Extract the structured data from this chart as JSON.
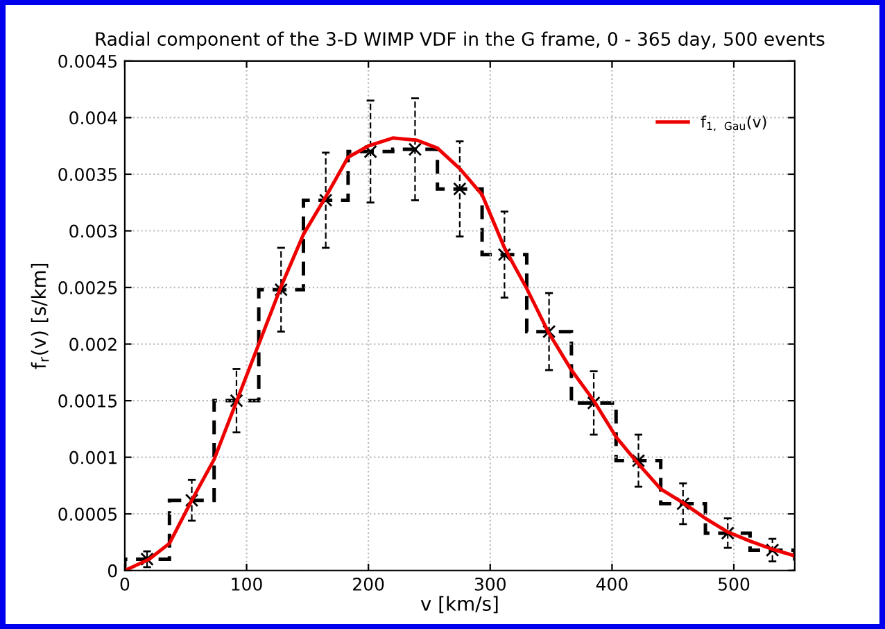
{
  "chart_data": {
    "type": "histogram",
    "title": "Radial component of the 3-D WIMP VDF in the G frame, 0 - 365 day, 500 events",
    "xlabel": "v [km/s]",
    "ylabel": "f$_{r}$(v) [s/km]",
    "xlim": [
      0,
      550
    ],
    "xticks": [
      0,
      100,
      200,
      300,
      400,
      500
    ],
    "ylim": [
      0,
      0.0045
    ],
    "yticks": [
      0,
      0.0005,
      0.001,
      0.0015,
      0.002,
      0.0025,
      0.003,
      0.0035,
      0.004,
      0.0045
    ],
    "grid": true,
    "legend": "top right",
    "bins": [
      0,
      36.67,
      73.33,
      110,
      146.67,
      183.33,
      220,
      256.67,
      293.33,
      330,
      366.67,
      403.33,
      440,
      476.67,
      513.33,
      550
    ],
    "series": [
      {
        "color": "#000000",
        "line_style": "dashed",
        "values": [
          0.0001,
          0.00062,
          0.0015,
          0.00248,
          0.00327,
          0.0037,
          0.00372,
          0.00337,
          0.00279,
          0.00211,
          0.00148,
          0.00097,
          0.00059,
          0.00033,
          0.00018
        ]
      },
      {
        "type": "scatter",
        "color": "#000000",
        "marker": "cross",
        "x": [
          18.3,
          55,
          91.7,
          128.3,
          165,
          201.7,
          238.3,
          275,
          311.7,
          348.3,
          385,
          421.7,
          458.3,
          495,
          531.7
        ],
        "values": [
          0.0001,
          0.00062,
          0.0015,
          0.00248,
          0.00327,
          0.0037,
          0.00372,
          0.00337,
          0.00279,
          0.00211,
          0.00148,
          0.00097,
          0.00059,
          0.00033,
          0.00018
        ],
        "errors": [
          7e-05,
          0.00018,
          0.00028,
          0.00037,
          0.00042,
          0.00045,
          0.00045,
          0.00042,
          0.00038,
          0.00034,
          0.00028,
          0.00023,
          0.00018,
          0.00013,
          0.0001
        ]
      },
      {
        "type": "line",
        "name": "f$_{1, Gau}$(v)",
        "color": "#ee0000",
        "line_style": "solid",
        "x": [
          0,
          20,
          36.7,
          55,
          73.3,
          92,
          110,
          128,
          146.7,
          165,
          183.3,
          200,
          220,
          240,
          256.7,
          275,
          293.3,
          311.7,
          330,
          348,
          366.7,
          385,
          403.3,
          421,
          440,
          458,
          476.7,
          495,
          513.3,
          531,
          550
        ],
        "values": [
          0,
          0.0001,
          0.00024,
          0.00062,
          0.00098,
          0.0015,
          0.002,
          0.0025,
          0.00297,
          0.0033,
          0.00365,
          0.00375,
          0.00382,
          0.0038,
          0.00373,
          0.00355,
          0.00332,
          0.00285,
          0.00249,
          0.0021,
          0.00177,
          0.0015,
          0.00118,
          0.00095,
          0.00072,
          0.0006,
          0.00046,
          0.00034,
          0.00026,
          0.00019,
          0.00013
        ]
      }
    ]
  }
}
